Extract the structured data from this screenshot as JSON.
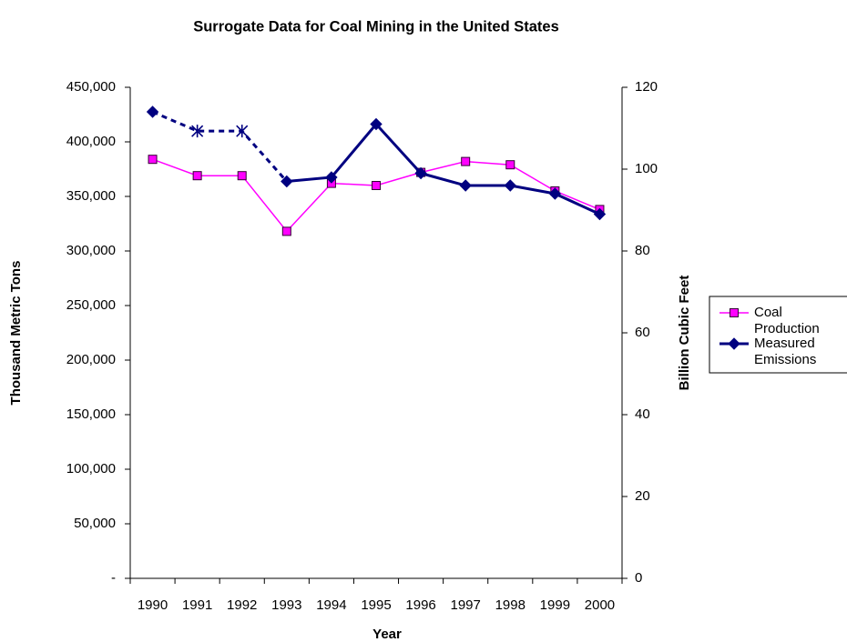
{
  "chart_data": {
    "type": "line",
    "title": "Surrogate Data for Coal Mining in the United States",
    "xlabel": "Year",
    "ylabel": "Thousand Metric Tons",
    "y2label": "Billion Cubic Feet",
    "categories": [
      "1990",
      "1991",
      "1992",
      "1993",
      "1994",
      "1995",
      "1996",
      "1997",
      "1998",
      "1999",
      "2000"
    ],
    "ylim": [
      0,
      450000
    ],
    "yticks": [
      {
        "value": 0,
        "label": "-"
      },
      {
        "value": 50000,
        "label": "50,000"
      },
      {
        "value": 100000,
        "label": "100,000"
      },
      {
        "value": 150000,
        "label": "150,000"
      },
      {
        "value": 200000,
        "label": "200,000"
      },
      {
        "value": 250000,
        "label": "250,000"
      },
      {
        "value": 300000,
        "label": "300,000"
      },
      {
        "value": 350000,
        "label": "350,000"
      },
      {
        "value": 400000,
        "label": "400,000"
      },
      {
        "value": 450000,
        "label": "450,000"
      }
    ],
    "y2lim": [
      0,
      120
    ],
    "y2ticks": [
      0,
      20,
      40,
      60,
      80,
      100,
      120
    ],
    "legend": "right",
    "series": [
      {
        "name": "Coal Production",
        "color": "#ff00ff",
        "marker": "square",
        "values": [
          384000,
          369000,
          369000,
          318000,
          362000,
          360000,
          372000,
          382000,
          379000,
          355000,
          338000
        ]
      },
      {
        "name": "Measured Emissions",
        "color": "#000080",
        "marker": "diamond",
        "axis": "y2",
        "values": [
          114,
          null,
          null,
          97,
          98,
          111,
          99,
          96,
          96,
          94,
          89
        ]
      },
      {
        "color": "#000080",
        "marker": "star",
        "dashed": true,
        "axis": "y2",
        "values": [
          114,
          109.3,
          109.3,
          97,
          null,
          null,
          null,
          null,
          null,
          null,
          null
        ]
      }
    ]
  }
}
